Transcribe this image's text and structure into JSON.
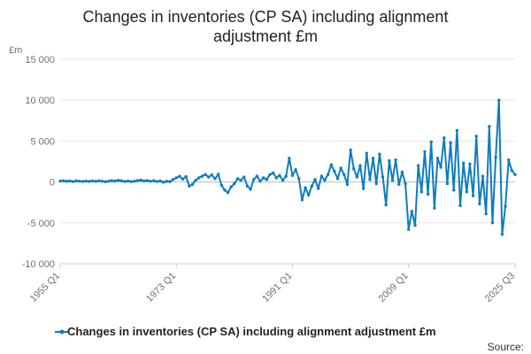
{
  "chart_data": {
    "type": "line",
    "title_lines": [
      "Changes in inventories (CP SA) including alignment",
      "adjustment £m"
    ],
    "ylabel": "£m",
    "ylim": [
      -10000,
      15000
    ],
    "y_ticks": [
      15000,
      10000,
      5000,
      0,
      -5000,
      -10000
    ],
    "y_tick_labels": [
      "15 000",
      "10 000",
      "5 000",
      "0",
      "-5 000",
      "-10 000"
    ],
    "x_range": [
      1955.0,
      2025.5
    ],
    "x_ticks": [
      {
        "x": 1955.0,
        "label": "1955 Q1"
      },
      {
        "x": 1973.0,
        "label": "1973 Q1"
      },
      {
        "x": 1991.0,
        "label": "1991 Q1"
      },
      {
        "x": 2009.0,
        "label": "2009 Q1"
      },
      {
        "x": 2025.5,
        "label": "2025 Q3"
      }
    ],
    "grid": true,
    "legend_position": "bottom",
    "series": [
      {
        "name": "Changes in inventories (CP SA) including alignment adjustment £m",
        "color": "#0f7cbf",
        "points": [
          [
            1955.0,
            100
          ],
          [
            1955.5,
            150
          ],
          [
            1956.0,
            80
          ],
          [
            1956.5,
            120
          ],
          [
            1957.0,
            50
          ],
          [
            1957.5,
            140
          ],
          [
            1958.0,
            90
          ],
          [
            1958.5,
            60
          ],
          [
            1959.0,
            110
          ],
          [
            1959.5,
            70
          ],
          [
            1960.0,
            120
          ],
          [
            1960.5,
            80
          ],
          [
            1961.0,
            140
          ],
          [
            1961.5,
            100
          ],
          [
            1962.0,
            30
          ],
          [
            1962.5,
            90
          ],
          [
            1963.0,
            160
          ],
          [
            1963.5,
            120
          ],
          [
            1964.0,
            200
          ],
          [
            1964.5,
            150
          ],
          [
            1965.0,
            60
          ],
          [
            1965.5,
            110
          ],
          [
            1966.0,
            40
          ],
          [
            1966.5,
            90
          ],
          [
            1967.0,
            180
          ],
          [
            1967.5,
            220
          ],
          [
            1968.0,
            130
          ],
          [
            1968.5,
            170
          ],
          [
            1969.0,
            90
          ],
          [
            1969.5,
            150
          ],
          [
            1970.0,
            60
          ],
          [
            1970.5,
            120
          ],
          [
            1971.0,
            -30
          ],
          [
            1971.5,
            80
          ],
          [
            1972.0,
            40
          ],
          [
            1972.5,
            300
          ],
          [
            1973.0,
            500
          ],
          [
            1973.5,
            700
          ],
          [
            1974.0,
            350
          ],
          [
            1974.5,
            650
          ],
          [
            1975.0,
            -500
          ],
          [
            1975.5,
            -300
          ],
          [
            1976.0,
            200
          ],
          [
            1976.5,
            500
          ],
          [
            1977.0,
            700
          ],
          [
            1977.5,
            900
          ],
          [
            1978.0,
            600
          ],
          [
            1978.5,
            850
          ],
          [
            1979.0,
            400
          ],
          [
            1979.5,
            950
          ],
          [
            1980.0,
            -400
          ],
          [
            1980.5,
            -1000
          ],
          [
            1981.0,
            -1300
          ],
          [
            1981.5,
            -600
          ],
          [
            1982.0,
            -200
          ],
          [
            1982.5,
            400
          ],
          [
            1983.0,
            200
          ],
          [
            1983.5,
            600
          ],
          [
            1984.0,
            -500
          ],
          [
            1984.5,
            -900
          ],
          [
            1985.0,
            300
          ],
          [
            1985.5,
            700
          ],
          [
            1986.0,
            100
          ],
          [
            1986.5,
            500
          ],
          [
            1987.0,
            300
          ],
          [
            1987.5,
            900
          ],
          [
            1988.0,
            1100
          ],
          [
            1988.5,
            500
          ],
          [
            1989.0,
            800
          ],
          [
            1989.5,
            200
          ],
          [
            1990.0,
            700
          ],
          [
            1990.5,
            2900
          ],
          [
            1991.0,
            800
          ],
          [
            1991.5,
            1500
          ],
          [
            1992.0,
            400
          ],
          [
            1992.5,
            -2200
          ],
          [
            1993.0,
            -700
          ],
          [
            1993.5,
            -1600
          ],
          [
            1994.0,
            -500
          ],
          [
            1994.5,
            300
          ],
          [
            1995.0,
            -800
          ],
          [
            1995.5,
            700
          ],
          [
            1996.0,
            200
          ],
          [
            1996.5,
            900
          ],
          [
            1997.0,
            2100
          ],
          [
            1997.5,
            1300
          ],
          [
            1998.0,
            400
          ],
          [
            1998.5,
            1700
          ],
          [
            1999.0,
            900
          ],
          [
            1999.5,
            -300
          ],
          [
            2000.0,
            3900
          ],
          [
            2000.5,
            1600
          ],
          [
            2001.0,
            600
          ],
          [
            2001.5,
            2000
          ],
          [
            2002.0,
            -800
          ],
          [
            2002.5,
            3500
          ],
          [
            2003.0,
            300
          ],
          [
            2003.5,
            2900
          ],
          [
            2004.0,
            -200
          ],
          [
            2004.5,
            3400
          ],
          [
            2005.0,
            600
          ],
          [
            2005.5,
            -2800
          ],
          [
            2006.0,
            2600
          ],
          [
            2006.5,
            200
          ],
          [
            2007.0,
            2700
          ],
          [
            2007.5,
            -300
          ],
          [
            2008.0,
            1200
          ],
          [
            2008.5,
            -200
          ],
          [
            2009.0,
            -5800
          ],
          [
            2009.5,
            -3600
          ],
          [
            2010.0,
            -5300
          ],
          [
            2010.5,
            2000
          ],
          [
            2011.0,
            -1200
          ],
          [
            2011.5,
            3700
          ],
          [
            2012.0,
            -1500
          ],
          [
            2012.5,
            4900
          ],
          [
            2013.0,
            -3200
          ],
          [
            2013.5,
            2900
          ],
          [
            2014.0,
            1800
          ],
          [
            2014.5,
            5400
          ],
          [
            2015.0,
            -200
          ],
          [
            2015.5,
            4800
          ],
          [
            2016.0,
            -1000
          ],
          [
            2016.5,
            6300
          ],
          [
            2017.0,
            -2900
          ],
          [
            2017.5,
            2300
          ],
          [
            2018.0,
            -1200
          ],
          [
            2018.5,
            2200
          ],
          [
            2019.0,
            -1700
          ],
          [
            2019.5,
            5600
          ],
          [
            2020.0,
            -2700
          ],
          [
            2020.5,
            700
          ],
          [
            2021.0,
            -3900
          ],
          [
            2021.5,
            6800
          ],
          [
            2022.0,
            -5000
          ],
          [
            2022.5,
            3000
          ],
          [
            2023.0,
            10000
          ],
          [
            2023.5,
            -6400
          ],
          [
            2024.0,
            -3000
          ],
          [
            2024.5,
            2700
          ],
          [
            2025.0,
            1400
          ],
          [
            2025.5,
            900
          ]
        ]
      }
    ],
    "source_label": "Source:"
  }
}
